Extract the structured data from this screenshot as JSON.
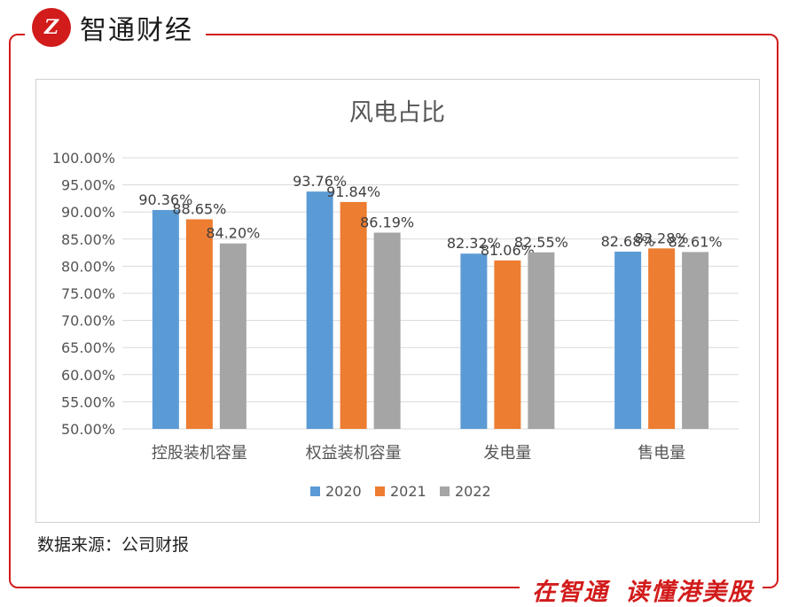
{
  "brand": {
    "logo_text": "Z",
    "name": "智通财经"
  },
  "source": "数据来源：公司财报",
  "slogan": {
    "part1": "在智通",
    "part2": "读懂港美股"
  },
  "colors": {
    "frame": "#d21b1b",
    "s2020": "#5b9bd5",
    "s2021": "#ed7d31",
    "s2022": "#a5a5a5"
  },
  "chart_data": {
    "type": "bar",
    "title": "风电占比",
    "categories": [
      "控股装机容量",
      "权益装机容量",
      "发电量",
      "售电量"
    ],
    "ylim": [
      50,
      100
    ],
    "yticks": [
      "100.00%",
      "95.00%",
      "90.00%",
      "85.00%",
      "80.00%",
      "75.00%",
      "70.00%",
      "65.00%",
      "60.00%",
      "55.00%",
      "50.00%"
    ],
    "series": [
      {
        "name": "2020",
        "values": [
          90.36,
          93.76,
          82.32,
          82.68
        ],
        "labels": [
          "90.36%",
          "93.76%",
          "82.32%",
          "82.68%"
        ],
        "color": "#5b9bd5"
      },
      {
        "name": "2021",
        "values": [
          88.65,
          91.84,
          81.06,
          83.28
        ],
        "labels": [
          "88.65%",
          "91.84%",
          "81.06%",
          "83.28%"
        ],
        "color": "#ed7d31"
      },
      {
        "name": "2022",
        "values": [
          84.2,
          86.19,
          82.55,
          82.61
        ],
        "labels": [
          "84.20%",
          "86.19%",
          "82.55%",
          "82.61%"
        ],
        "color": "#a5a5a5"
      }
    ],
    "grid": true,
    "legend": "bottom"
  }
}
